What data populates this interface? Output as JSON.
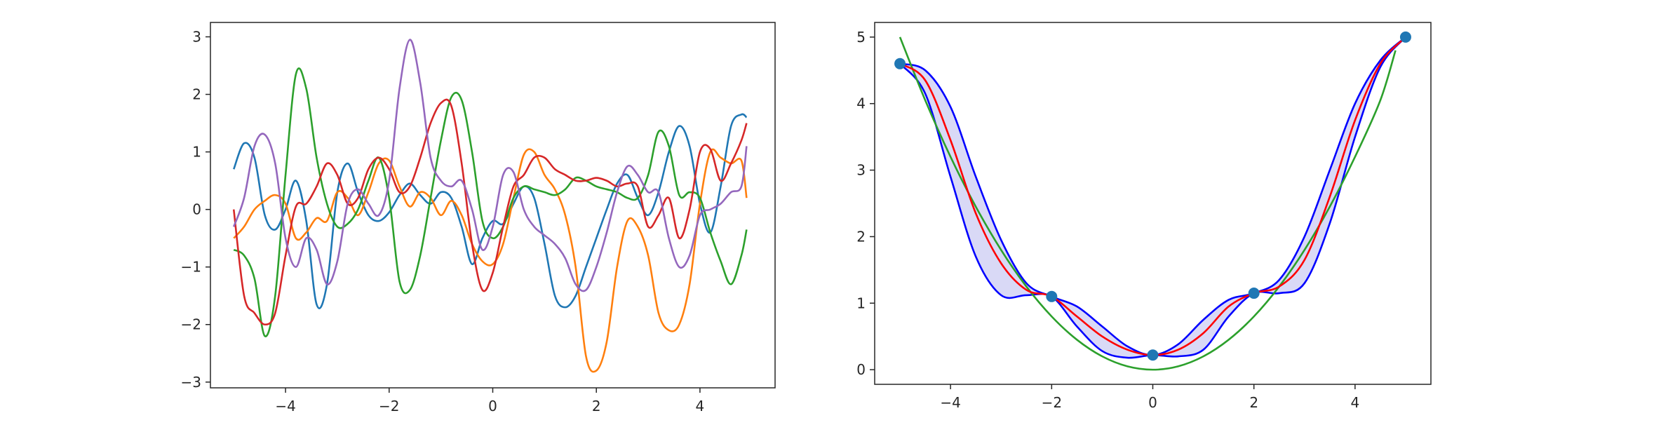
{
  "chart_data": [
    {
      "type": "line",
      "title": "",
      "xlabel": "",
      "ylabel": "",
      "xlim": [
        -5.45,
        5.45
      ],
      "ylim": [
        -3.1,
        3.25
      ],
      "xticks": [
        -4,
        -2,
        0,
        2,
        4
      ],
      "xtick_labels": [
        "−4",
        "−2",
        "0",
        "2",
        "4"
      ],
      "yticks": [
        -3,
        -2,
        -1,
        0,
        1,
        2,
        3
      ],
      "ytick_labels": [
        "−3",
        "−2",
        "−1",
        "0",
        "1",
        "2",
        "3"
      ],
      "grid": false,
      "legend": "none",
      "series": [
        {
          "color": "#1f77b4",
          "x": [
            -5.0,
            -4.8,
            -4.6,
            -4.4,
            -4.2,
            -4.0,
            -3.8,
            -3.6,
            -3.4,
            -3.2,
            -3.0,
            -2.8,
            -2.6,
            -2.4,
            -2.2,
            -2.0,
            -1.8,
            -1.6,
            -1.4,
            -1.2,
            -1.0,
            -0.8,
            -0.6,
            -0.4,
            -0.2,
            0.0,
            0.2,
            0.4,
            0.6,
            0.8,
            1.0,
            1.2,
            1.4,
            1.6,
            1.8,
            2.0,
            2.2,
            2.4,
            2.6,
            2.8,
            3.0,
            3.2,
            3.4,
            3.6,
            3.8,
            4.0,
            4.2,
            4.4,
            4.6,
            4.8,
            4.9
          ],
          "y": [
            0.7,
            1.15,
            0.9,
            -0.1,
            -0.35,
            0.0,
            0.5,
            -0.2,
            -1.65,
            -1.3,
            0.3,
            0.8,
            0.3,
            -0.1,
            -0.2,
            -0.05,
            0.25,
            0.45,
            0.25,
            0.1,
            0.3,
            0.2,
            -0.3,
            -0.95,
            -0.5,
            -0.2,
            -0.25,
            0.1,
            0.4,
            0.2,
            -0.6,
            -1.5,
            -1.7,
            -1.5,
            -1.0,
            -0.5,
            0.0,
            0.45,
            0.6,
            0.2,
            -0.1,
            0.3,
            1.0,
            1.45,
            1.1,
            0.1,
            -0.4,
            0.4,
            1.45,
            1.65,
            1.6
          ]
        },
        {
          "color": "#ff7f0e",
          "x": [
            -5.0,
            -4.8,
            -4.6,
            -4.4,
            -4.2,
            -4.0,
            -3.8,
            -3.6,
            -3.4,
            -3.2,
            -3.0,
            -2.8,
            -2.6,
            -2.4,
            -2.2,
            -2.0,
            -1.8,
            -1.6,
            -1.4,
            -1.2,
            -1.0,
            -0.8,
            -0.6,
            -0.4,
            -0.2,
            0.0,
            0.2,
            0.4,
            0.6,
            0.8,
            1.0,
            1.2,
            1.4,
            1.6,
            1.8,
            2.0,
            2.2,
            2.4,
            2.6,
            2.8,
            3.0,
            3.2,
            3.4,
            3.6,
            3.8,
            4.0,
            4.2,
            4.4,
            4.6,
            4.8,
            4.9
          ],
          "y": [
            -0.5,
            -0.3,
            0.0,
            0.15,
            0.25,
            0.1,
            -0.5,
            -0.4,
            -0.15,
            -0.2,
            0.3,
            0.2,
            -0.1,
            0.3,
            0.8,
            0.85,
            0.4,
            0.05,
            0.3,
            0.2,
            -0.1,
            0.15,
            -0.1,
            -0.6,
            -0.9,
            -0.95,
            -0.6,
            0.2,
            0.95,
            1.0,
            0.6,
            0.35,
            -0.1,
            -1.0,
            -2.55,
            -2.8,
            -2.3,
            -1.0,
            -0.2,
            -0.3,
            -0.8,
            -1.8,
            -2.1,
            -2.0,
            -1.3,
            0.1,
            1.0,
            0.9,
            0.8,
            0.85,
            0.2
          ]
        },
        {
          "color": "#2ca02c",
          "x": [
            -5.0,
            -4.8,
            -4.6,
            -4.4,
            -4.2,
            -4.0,
            -3.8,
            -3.6,
            -3.4,
            -3.2,
            -3.0,
            -2.8,
            -2.6,
            -2.4,
            -2.2,
            -2.0,
            -1.8,
            -1.6,
            -1.4,
            -1.2,
            -1.0,
            -0.8,
            -0.6,
            -0.4,
            -0.2,
            0.0,
            0.2,
            0.4,
            0.6,
            0.8,
            1.0,
            1.2,
            1.4,
            1.6,
            1.8,
            2.0,
            2.2,
            2.4,
            2.6,
            2.8,
            3.0,
            3.2,
            3.4,
            3.6,
            3.8,
            4.0,
            4.2,
            4.4,
            4.6,
            4.8,
            4.9
          ],
          "y": [
            -0.7,
            -0.8,
            -1.2,
            -2.2,
            -1.5,
            0.6,
            2.35,
            2.1,
            0.9,
            0.1,
            -0.3,
            -0.25,
            0.0,
            0.5,
            0.9,
            0.2,
            -1.25,
            -1.4,
            -0.8,
            0.2,
            1.2,
            1.95,
            1.9,
            1.0,
            -0.2,
            -0.5,
            -0.3,
            0.2,
            0.4,
            0.35,
            0.3,
            0.25,
            0.35,
            0.55,
            0.5,
            0.4,
            0.35,
            0.3,
            0.2,
            0.2,
            0.6,
            1.35,
            1.1,
            0.25,
            0.3,
            0.2,
            -0.4,
            -0.9,
            -1.3,
            -0.8,
            -0.35
          ]
        },
        {
          "color": "#d62728",
          "x": [
            -5.0,
            -4.8,
            -4.6,
            -4.4,
            -4.2,
            -4.0,
            -3.8,
            -3.6,
            -3.4,
            -3.2,
            -3.0,
            -2.8,
            -2.6,
            -2.4,
            -2.2,
            -2.0,
            -1.8,
            -1.6,
            -1.4,
            -1.2,
            -1.0,
            -0.8,
            -0.6,
            -0.4,
            -0.2,
            0.0,
            0.2,
            0.4,
            0.6,
            0.8,
            1.0,
            1.2,
            1.4,
            1.6,
            1.8,
            2.0,
            2.2,
            2.4,
            2.6,
            2.8,
            3.0,
            3.2,
            3.4,
            3.6,
            3.8,
            4.0,
            4.2,
            4.4,
            4.6,
            4.8,
            4.9
          ],
          "y": [
            0.0,
            -1.5,
            -1.8,
            -2.0,
            -1.8,
            -0.8,
            0.05,
            0.1,
            0.4,
            0.8,
            0.6,
            0.1,
            0.2,
            0.7,
            0.9,
            0.7,
            0.3,
            0.4,
            0.9,
            1.5,
            1.85,
            1.8,
            0.8,
            -0.6,
            -1.4,
            -1.1,
            -0.3,
            0.4,
            0.6,
            0.9,
            0.9,
            0.7,
            0.6,
            0.5,
            0.5,
            0.55,
            0.5,
            0.4,
            0.45,
            0.4,
            -0.3,
            -0.1,
            0.2,
            -0.5,
            0.0,
            1.0,
            1.05,
            0.5,
            0.8,
            1.2,
            1.5
          ]
        },
        {
          "color": "#9467bd",
          "x": [
            -5.0,
            -4.8,
            -4.6,
            -4.4,
            -4.2,
            -4.0,
            -3.8,
            -3.6,
            -3.4,
            -3.2,
            -3.0,
            -2.8,
            -2.6,
            -2.4,
            -2.2,
            -2.0,
            -1.8,
            -1.6,
            -1.4,
            -1.2,
            -1.0,
            -0.8,
            -0.6,
            -0.4,
            -0.2,
            0.0,
            0.2,
            0.4,
            0.6,
            0.8,
            1.0,
            1.2,
            1.4,
            1.6,
            1.8,
            2.0,
            2.2,
            2.4,
            2.6,
            2.8,
            3.0,
            3.2,
            3.4,
            3.6,
            3.8,
            4.0,
            4.2,
            4.4,
            4.6,
            4.8,
            4.9
          ],
          "y": [
            -0.3,
            0.2,
            1.1,
            1.3,
            0.8,
            -0.5,
            -1.0,
            -0.5,
            -0.7,
            -1.3,
            -0.9,
            0.1,
            0.35,
            0.1,
            -0.1,
            0.5,
            2.1,
            2.95,
            2.2,
            0.9,
            0.5,
            0.4,
            0.5,
            0.0,
            -0.7,
            -0.3,
            0.6,
            0.65,
            0.0,
            -0.3,
            -0.45,
            -0.6,
            -0.85,
            -1.3,
            -1.4,
            -1.0,
            -0.4,
            0.3,
            0.75,
            0.6,
            0.3,
            0.3,
            -0.5,
            -1.0,
            -0.8,
            -0.1,
            0.0,
            0.1,
            0.3,
            0.4,
            1.1
          ]
        }
      ]
    },
    {
      "type": "line",
      "title": "",
      "xlabel": "",
      "ylabel": "",
      "xlim": [
        -5.5,
        5.5
      ],
      "ylim": [
        -0.22,
        5.22
      ],
      "xticks": [
        -4,
        -2,
        0,
        2,
        4
      ],
      "xtick_labels": [
        "−4",
        "−2",
        "0",
        "2",
        "4"
      ],
      "yticks": [
        0,
        1,
        2,
        3,
        4,
        5
      ],
      "ytick_labels": [
        "0",
        "1",
        "2",
        "3",
        "4",
        "5"
      ],
      "grid": false,
      "legend": "none",
      "band": {
        "color": "#0000ff",
        "fill": "#d9d9f6",
        "x": [
          -5.0,
          -4.5,
          -4.0,
          -3.5,
          -3.0,
          -2.5,
          -2.0,
          -1.5,
          -1.0,
          -0.5,
          0.0,
          0.5,
          1.0,
          1.5,
          2.0,
          2.5,
          3.0,
          3.5,
          4.0,
          4.5,
          5.0
        ],
        "upper": [
          4.6,
          4.5,
          3.95,
          2.9,
          1.95,
          1.3,
          1.1,
          0.95,
          0.65,
          0.35,
          0.22,
          0.38,
          0.75,
          1.05,
          1.15,
          1.35,
          2.0,
          3.0,
          4.0,
          4.65,
          5.0
        ],
        "lower": [
          4.6,
          4.15,
          2.9,
          1.7,
          1.12,
          1.12,
          1.1,
          0.65,
          0.28,
          0.18,
          0.22,
          0.2,
          0.3,
          0.8,
          1.15,
          1.15,
          1.3,
          2.2,
          3.5,
          4.55,
          5.0
        ]
      },
      "mean": {
        "color": "#ff0000",
        "x": [
          -5.0,
          -4.5,
          -4.0,
          -3.5,
          -3.0,
          -2.5,
          -2.0,
          -1.5,
          -1.0,
          -0.5,
          0.0,
          0.5,
          1.0,
          1.5,
          2.0,
          2.5,
          3.0,
          3.5,
          4.0,
          4.5,
          5.0
        ],
        "y": [
          4.6,
          4.35,
          3.45,
          2.35,
          1.6,
          1.2,
          1.1,
          0.8,
          0.5,
          0.3,
          0.22,
          0.3,
          0.55,
          0.95,
          1.15,
          1.25,
          1.65,
          2.6,
          3.75,
          4.6,
          5.0
        ]
      },
      "true_function": {
        "color": "#2ca02c",
        "x": [
          -5.0,
          -4.5,
          -4.0,
          -3.5,
          -3.0,
          -2.5,
          -2.0,
          -1.5,
          -1.0,
          -0.5,
          0.0,
          0.5,
          1.0,
          1.5,
          2.0,
          2.5,
          3.0,
          3.5,
          4.0,
          4.5,
          4.8
        ],
        "y": [
          5.0,
          4.05,
          3.2,
          2.45,
          1.8,
          1.25,
          0.8,
          0.45,
          0.2,
          0.05,
          0.0,
          0.05,
          0.2,
          0.45,
          0.8,
          1.25,
          1.8,
          2.45,
          3.2,
          4.05,
          4.8
        ]
      },
      "observations": {
        "color": "#1f77b4",
        "x": [
          -5.0,
          -2.0,
          0.0,
          2.0,
          5.0
        ],
        "y": [
          4.6,
          1.1,
          0.22,
          1.15,
          5.0
        ]
      }
    }
  ]
}
